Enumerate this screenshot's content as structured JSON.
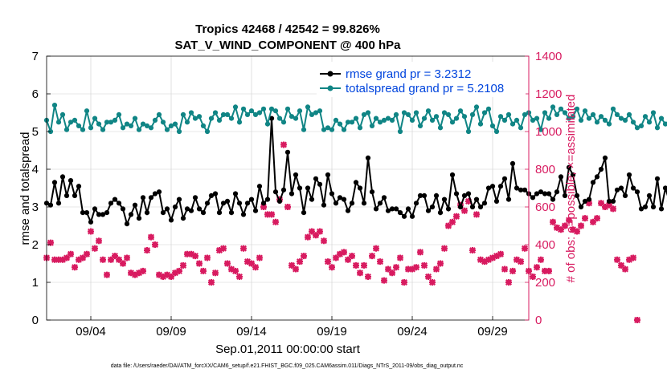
{
  "chart_data": {
    "type": "line",
    "title": "Tropics 42468 / 42542 = 99.826%",
    "subtitle": "SAT_V_WIND_COMPONENT @ 400 hPa",
    "xlabel": "Sep.01,2011 00:00:00 start",
    "ylabel": "rmse and totalspread",
    "ylabel_right": "# of obs: o=possible; ×=assimilated",
    "footer": "data file: /Users/raeder/DAI/ATM_forcXX/CAM6_setup/f.e21.FHIST_BGC.f09_025.CAM6assim.011/Diags_NTrS_2011-09/obs_diag_output.nc",
    "xlim": [
      0.75,
      30.75
    ],
    "ylim": [
      0,
      7
    ],
    "ylim_right": [
      0,
      1400
    ],
    "xtick_values": [
      3.5,
      8.5,
      13.5,
      18.5,
      23.5,
      28.5
    ],
    "xtick_labels": [
      "09/04",
      "09/09",
      "09/14",
      "09/19",
      "09/24",
      "09/29"
    ],
    "ytick_labels": [
      "0",
      "1",
      "2",
      "3",
      "4",
      "5",
      "6",
      "7"
    ],
    "ytick_labels_right": [
      "0",
      "200",
      "400",
      "600",
      "800",
      "1000",
      "1200",
      "1400"
    ],
    "colors": {
      "rmse": "#000000",
      "spread": "#108585",
      "obs": "#d81b60",
      "legend_text": "#0044dd",
      "right_axis": "#d81b60"
    },
    "series": [
      {
        "name": "rmse grand pr = 3.2312",
        "axis": "left",
        "x_start": 0.75,
        "x_step": 0.25,
        "values": [
          3.1,
          3.05,
          3.65,
          3.1,
          3.8,
          3.3,
          3.7,
          3.3,
          3.55,
          2.85,
          2.85,
          2.6,
          2.95,
          2.8,
          2.8,
          2.85,
          3.1,
          3.2,
          3.1,
          2.95,
          2.55,
          2.8,
          3.05,
          2.7,
          3.25,
          2.85,
          3.25,
          3.35,
          3.4,
          2.85,
          2.95,
          2.65,
          3.0,
          3.2,
          2.7,
          2.95,
          2.9,
          3.25,
          2.95,
          2.85,
          3.1,
          3.3,
          3.35,
          2.85,
          3.1,
          3.15,
          2.85,
          3.35,
          3.1,
          2.8,
          3.1,
          3.2,
          2.9,
          3.55,
          3.1,
          3.2,
          5.35,
          3.4,
          3.15,
          3.45,
          4.45,
          3.35,
          3.85,
          3.5,
          2.85,
          3.5,
          3.2,
          3.75,
          3.6,
          3.05,
          3.85,
          3.35,
          3.1,
          3.25,
          3.2,
          2.9,
          3.1,
          3.65,
          3.5,
          3.1,
          4.3,
          3.4,
          2.95,
          3.1,
          3.25,
          2.9,
          2.95,
          2.95,
          2.85,
          2.75,
          2.95,
          2.75,
          3.1,
          3.3,
          3.3,
          2.9,
          3.0,
          3.3,
          2.85,
          3.2,
          2.95,
          3.85,
          3.35,
          3.0,
          3.3,
          3.35,
          3.0,
          3.2,
          3.0,
          3.1,
          3.5,
          3.55,
          3.15,
          3.55,
          3.75,
          3.2,
          4.15,
          3.5,
          3.45,
          3.45,
          3.35,
          3.25,
          3.35,
          3.4,
          3.35,
          3.35,
          3.2,
          3.4,
          3.8,
          3.3,
          4.05,
          3.85,
          3.3,
          3.0,
          3.15,
          3.2,
          3.65,
          3.8,
          4.0,
          4.3,
          3.15,
          3.15,
          3.45,
          3.5,
          3.3,
          3.85,
          3.5,
          3.4,
          2.95,
          3.0,
          3.3,
          3.0,
          3.75,
          2.95,
          3.5,
          3.15,
          2.75,
          2.85,
          2.85,
          3.8,
          2.75,
          2.7,
          2.6,
          2.7,
          2.45,
          2.65,
          2.55,
          2.7,
          3.0,
          2.8,
          3.2,
          4.25,
          3.05,
          2.95,
          3.0
        ],
        "obs_values": [
          330,
          410,
          320,
          320,
          320,
          330,
          350,
          280,
          320,
          330,
          350,
          470,
          380,
          420,
          320,
          240,
          320,
          340,
          320,
          300,
          330,
          250,
          240,
          250,
          260,
          370,
          440,
          400,
          240,
          230,
          240,
          230,
          250,
          260,
          290,
          350,
          350,
          340,
          300,
          260,
          330,
          200,
          250,
          370,
          380,
          300,
          270,
          260,
          230,
          380,
          310,
          300,
          280,
          330,
          600,
          560,
          560,
          520,
          640,
          930,
          600,
          290,
          270,
          310,
          340,
          440,
          470,
          450,
          470,
          420,
          310,
          280,
          330,
          350,
          360,
          320,
          340,
          290,
          250,
          290,
          230,
          340,
          380,
          310,
          210,
          270,
          250,
          280,
          330,
          200,
          270,
          270,
          280,
          360,
          290,
          230,
          200,
          270,
          300,
          380,
          500,
          520,
          550,
          610,
          580,
          630,
          370,
          560,
          320,
          310,
          320,
          330,
          340,
          350,
          270,
          200,
          260,
          320,
          310,
          380,
          260,
          230,
          280,
          320,
          260,
          260,
          520,
          490,
          480,
          500,
          530,
          480,
          470,
          500,
          540,
          620,
          520,
          540,
          620,
          600,
          610,
          590,
          320,
          290,
          270,
          320,
          330,
          0
        ]
      },
      {
        "name": "totalspread grand pr = 5.2108",
        "axis": "left",
        "x_start": 0.75,
        "x_step": 0.25,
        "values": [
          5.3,
          5.0,
          5.7,
          5.25,
          5.45,
          5.05,
          5.25,
          5.3,
          5.15,
          5.05,
          5.55,
          5.1,
          5.35,
          5.2,
          5.05,
          5.25,
          5.25,
          5.3,
          5.45,
          5.1,
          5.2,
          5.15,
          5.35,
          5.05,
          5.2,
          5.15,
          5.1,
          5.3,
          5.45,
          5.25,
          5.05,
          5.15,
          5.2,
          5.0,
          5.45,
          5.25,
          5.5,
          5.35,
          5.4,
          5.15,
          5.0,
          5.35,
          5.5,
          5.3,
          5.45,
          5.45,
          5.35,
          5.65,
          5.25,
          5.6,
          5.45,
          5.55,
          5.45,
          5.5,
          5.6,
          5.2,
          5.6,
          5.55,
          5.35,
          5.25,
          5.6,
          5.4,
          5.35,
          5.55,
          5.05,
          5.65,
          5.45,
          5.5,
          5.55,
          5.05,
          5.1,
          5.05,
          5.3,
          5.2,
          5.05,
          5.25,
          5.25,
          5.35,
          5.1,
          5.45,
          5.5,
          5.15,
          5.35,
          5.25,
          5.3,
          5.35,
          5.3,
          5.45,
          5.0,
          5.5,
          5.45,
          5.3,
          5.5,
          5.15,
          5.35,
          5.55,
          5.3,
          5.4,
          5.1,
          5.5,
          5.45,
          5.25,
          5.35,
          5.55,
          5.4,
          5.0,
          5.45,
          5.65,
          5.2,
          5.5,
          5.6,
          5.15,
          5.0,
          5.4,
          5.3,
          5.45,
          5.2,
          5.3,
          5.1,
          5.45,
          5.5,
          5.3,
          5.35,
          5.05,
          5.5,
          5.35,
          5.65,
          5.45,
          5.6,
          5.5,
          5.35,
          5.4,
          5.6,
          5.3,
          5.55,
          5.35,
          5.45,
          5.25,
          5.4,
          5.3,
          5.2,
          5.6,
          5.45,
          5.35,
          5.3,
          5.45,
          5.25,
          5.1,
          5.15,
          5.4,
          5.25,
          5.5,
          5.1,
          5.35,
          5.2,
          5.3,
          5.15,
          5.45,
          5.25,
          5.55,
          5.3,
          5.05,
          5.4,
          5.35,
          5.2,
          5.45,
          5.3,
          5.25,
          5.4,
          5.15,
          5.45,
          5.3,
          5.2,
          5.25,
          5.35
        ],
        "obs_values": []
      }
    ]
  }
}
